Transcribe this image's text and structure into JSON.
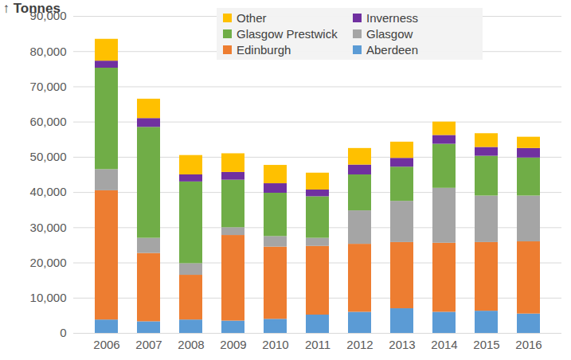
{
  "chart_data": {
    "type": "bar",
    "stacked": true,
    "y_label": "Tonnes",
    "categories": [
      "2006",
      "2007",
      "2008",
      "2009",
      "2010",
      "2011",
      "2012",
      "2013",
      "2014",
      "2015",
      "2016"
    ],
    "series": [
      {
        "name": "Aberdeen",
        "color": "#5b9bd5",
        "values": [
          3800,
          3300,
          3800,
          3500,
          4000,
          5200,
          6000,
          7000,
          6000,
          6300,
          5500
        ]
      },
      {
        "name": "Edinburgh",
        "color": "#ed7d31",
        "values": [
          36700,
          19400,
          12700,
          24300,
          20500,
          19500,
          19300,
          18800,
          19600,
          19500,
          20500
        ]
      },
      {
        "name": "Glasgow",
        "color": "#a5a5a5",
        "values": [
          6000,
          4300,
          3300,
          2200,
          3000,
          2300,
          9500,
          11700,
          15600,
          13200,
          13000
        ]
      },
      {
        "name": "Glasgow Prestwick",
        "color": "#70ad47",
        "values": [
          28800,
          31500,
          23200,
          13500,
          12300,
          11800,
          10200,
          9700,
          12500,
          11300,
          10800
        ]
      },
      {
        "name": "Inverness",
        "color": "#7030a0",
        "values": [
          2000,
          2500,
          2000,
          2200,
          2700,
          1900,
          2800,
          2500,
          2500,
          2500,
          2700
        ]
      },
      {
        "name": "Other",
        "color": "#ffc000",
        "values": [
          6200,
          5500,
          5500,
          5300,
          5200,
          4800,
          4700,
          4600,
          3800,
          3900,
          3200
        ]
      }
    ],
    "ylim": [
      0,
      90000
    ],
    "yticks": [
      0,
      {
        "value": 10000,
        "label": "10,000"
      },
      {
        "value": 20000,
        "label": "20,000"
      },
      {
        "value": 30000,
        "label": "30,000"
      },
      {
        "value": 40000,
        "label": "40,000"
      },
      {
        "value": 50000,
        "label": "50,000"
      },
      {
        "value": 60000,
        "label": "60,000"
      },
      {
        "value": 70000,
        "label": "70,000"
      },
      {
        "value": 80000,
        "label": "80,000"
      },
      {
        "value": 90000,
        "label": "90,000"
      }
    ],
    "grid": true,
    "legend": "top"
  }
}
